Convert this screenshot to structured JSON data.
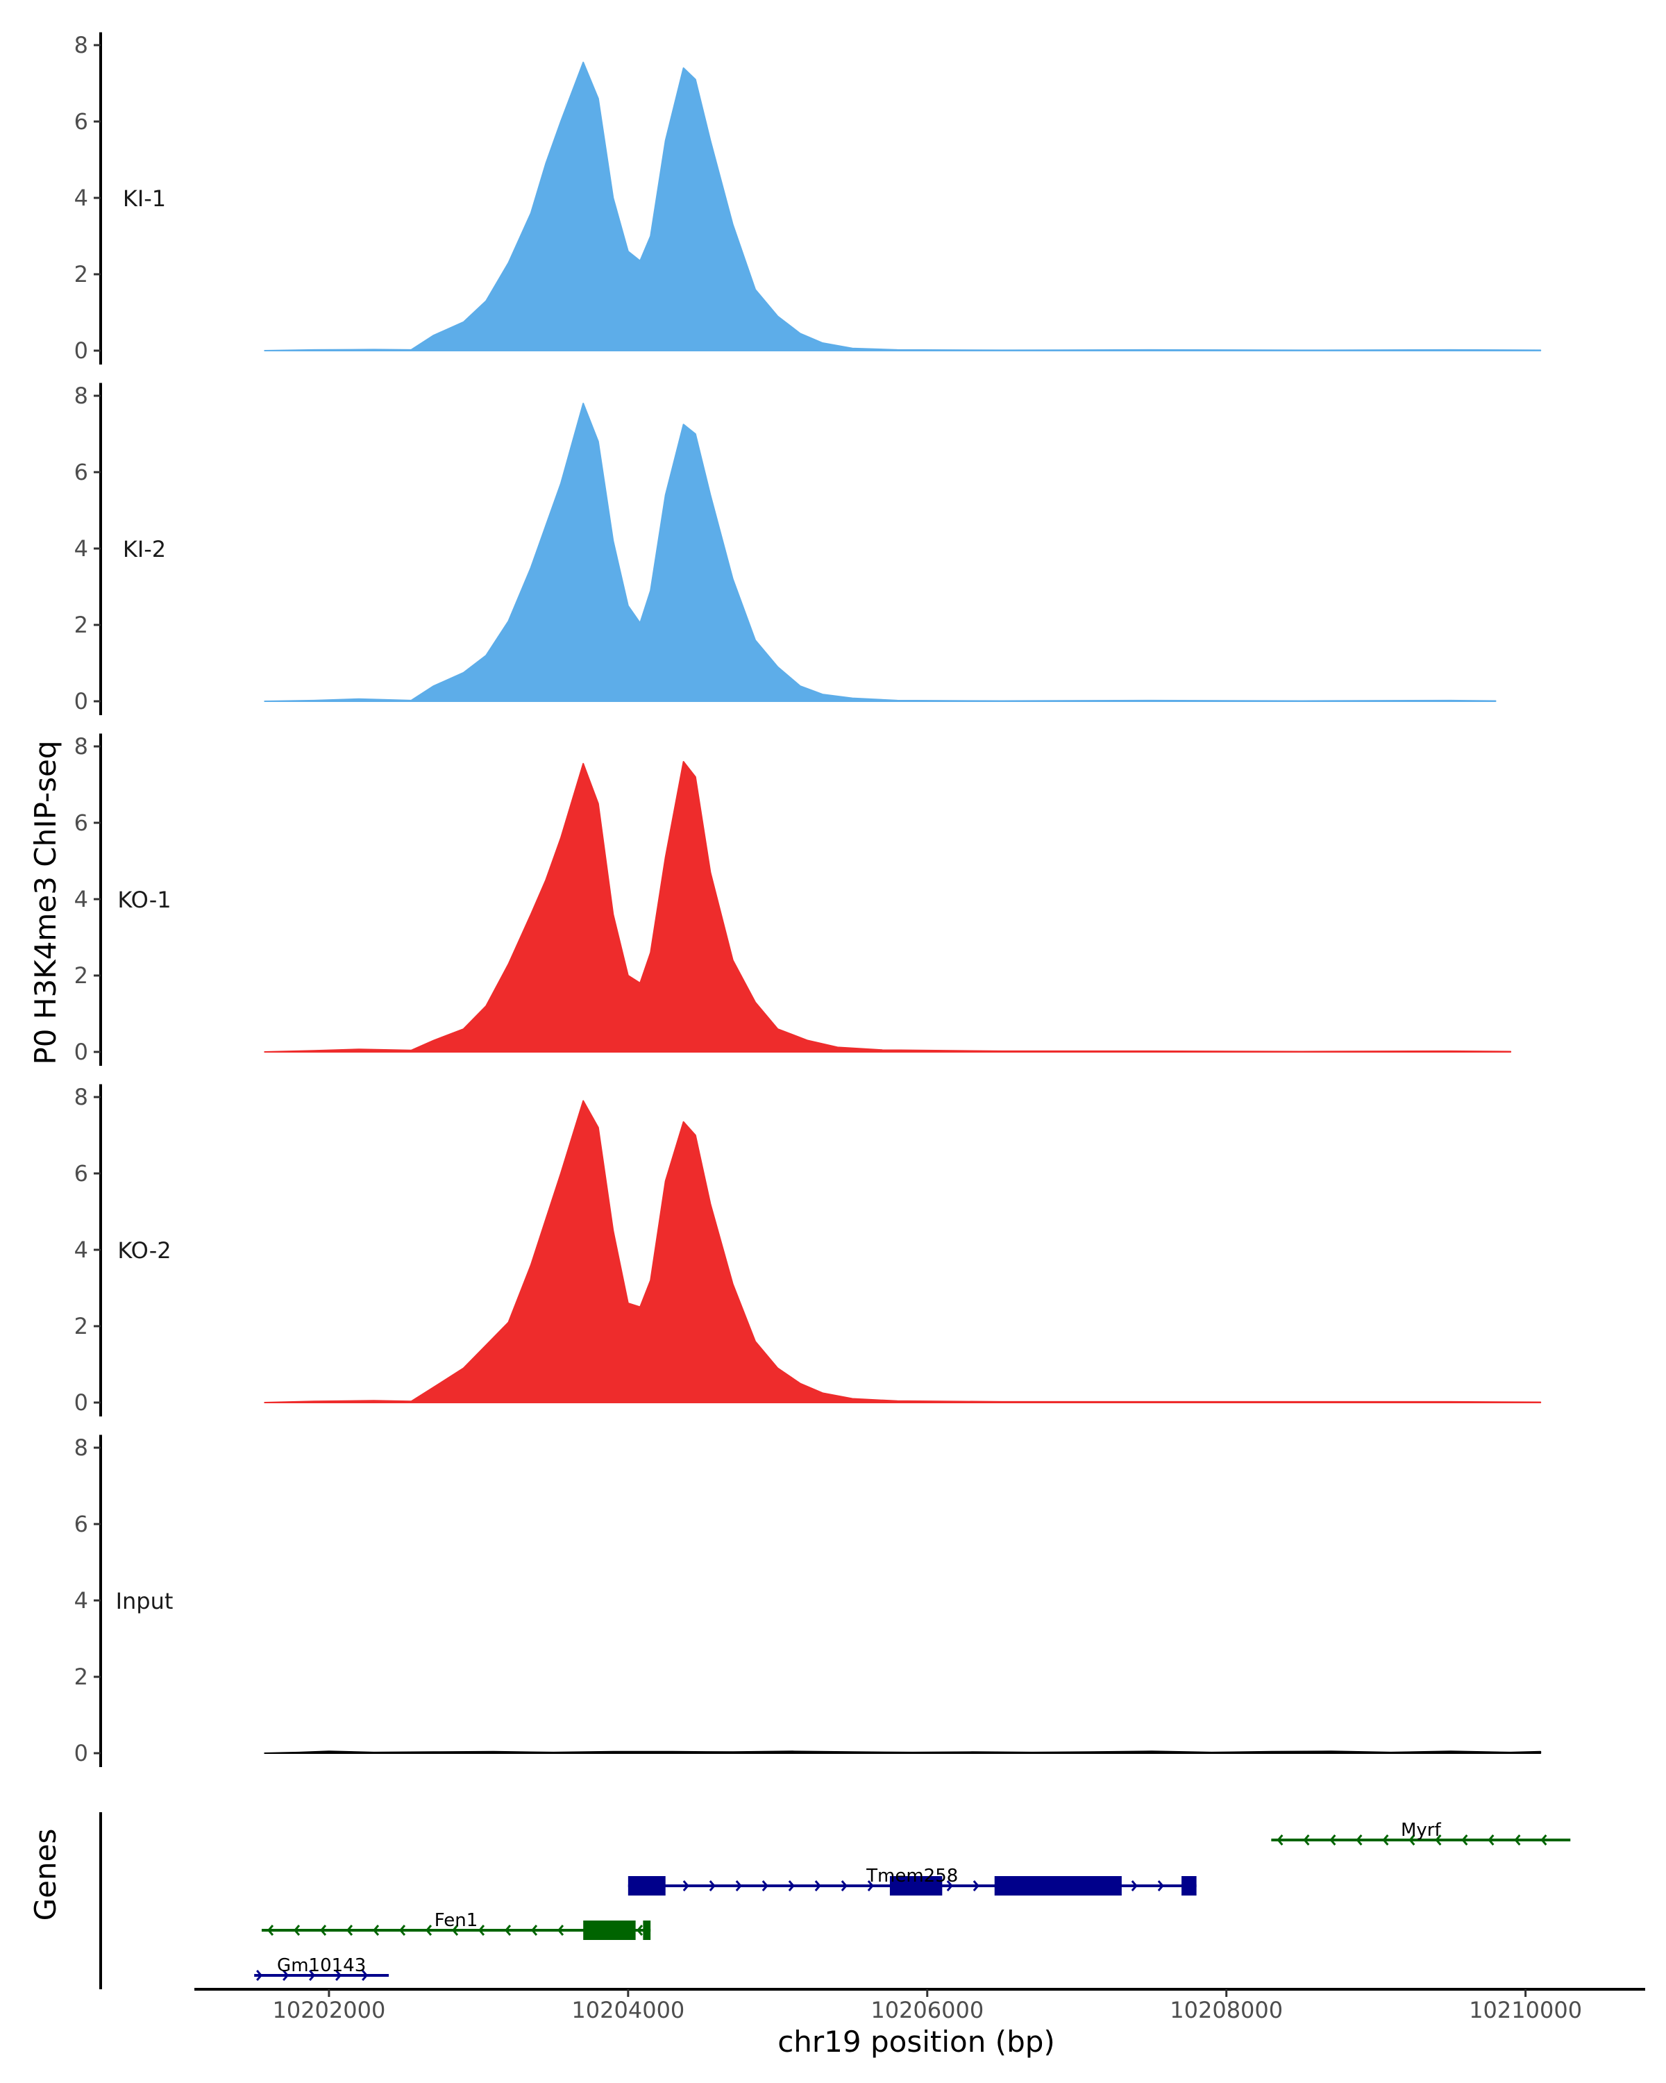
{
  "chart_data": {
    "type": "area",
    "ylabel": "P0 H3K4me3 ChIP-seq",
    "xlabel": "chr19 position (bp)",
    "genes_label": "Genes",
    "xlim": [
      10201100,
      10210800
    ],
    "ylim": [
      0,
      8.3
    ],
    "x_ticks": [
      10202000,
      10204000,
      10206000,
      10208000,
      10210000
    ],
    "x_tick_labels": [
      "10202000",
      "10204000",
      "10206000",
      "10208000",
      "10210000"
    ],
    "y_ticks": [
      0,
      2,
      4,
      6,
      8
    ],
    "y_tick_labels": [
      "0",
      "2",
      "4",
      "6",
      "8"
    ],
    "tracks": [
      {
        "name": "KI-1",
        "color": "#5dade9",
        "points": [
          [
            10201570,
            0
          ],
          [
            10201900,
            0.02
          ],
          [
            10202300,
            0.03
          ],
          [
            10202550,
            0.02
          ],
          [
            10202700,
            0.4
          ],
          [
            10202900,
            0.75
          ],
          [
            10203050,
            1.3
          ],
          [
            10203200,
            2.3
          ],
          [
            10203350,
            3.6
          ],
          [
            10203450,
            4.9
          ],
          [
            10203550,
            6.0
          ],
          [
            10203700,
            7.55
          ],
          [
            10203800,
            6.6
          ],
          [
            10203900,
            4.0
          ],
          [
            10204000,
            2.6
          ],
          [
            10204080,
            2.35
          ],
          [
            10204150,
            3.0
          ],
          [
            10204250,
            5.5
          ],
          [
            10204370,
            7.4
          ],
          [
            10204450,
            7.1
          ],
          [
            10204550,
            5.5
          ],
          [
            10204700,
            3.3
          ],
          [
            10204850,
            1.6
          ],
          [
            10205000,
            0.9
          ],
          [
            10205150,
            0.45
          ],
          [
            10205300,
            0.2
          ],
          [
            10205500,
            0.06
          ],
          [
            10205800,
            0.02
          ],
          [
            10206500,
            0.01
          ],
          [
            10207500,
            0.02
          ],
          [
            10208500,
            0.01
          ],
          [
            10209500,
            0.02
          ],
          [
            10210100,
            0.01
          ]
        ]
      },
      {
        "name": "KI-2",
        "color": "#5dade9",
        "points": [
          [
            10201570,
            0
          ],
          [
            10201900,
            0.02
          ],
          [
            10202200,
            0.06
          ],
          [
            10202550,
            0.02
          ],
          [
            10202700,
            0.4
          ],
          [
            10202900,
            0.75
          ],
          [
            10203050,
            1.2
          ],
          [
            10203200,
            2.1
          ],
          [
            10203350,
            3.5
          ],
          [
            10203450,
            4.6
          ],
          [
            10203550,
            5.7
          ],
          [
            10203700,
            7.8
          ],
          [
            10203800,
            6.8
          ],
          [
            10203900,
            4.2
          ],
          [
            10204000,
            2.5
          ],
          [
            10204080,
            2.05
          ],
          [
            10204150,
            2.9
          ],
          [
            10204250,
            5.4
          ],
          [
            10204370,
            7.25
          ],
          [
            10204450,
            7.0
          ],
          [
            10204550,
            5.4
          ],
          [
            10204700,
            3.2
          ],
          [
            10204850,
            1.6
          ],
          [
            10205000,
            0.9
          ],
          [
            10205150,
            0.4
          ],
          [
            10205300,
            0.18
          ],
          [
            10205500,
            0.08
          ],
          [
            10205800,
            0.02
          ],
          [
            10206500,
            0.01
          ],
          [
            10207500,
            0.02
          ],
          [
            10208500,
            0.01
          ],
          [
            10209500,
            0.02
          ],
          [
            10209800,
            0.01
          ]
        ]
      },
      {
        "name": "KO-1",
        "color": "#ee2c2c",
        "points": [
          [
            10201570,
            0
          ],
          [
            10201900,
            0.03
          ],
          [
            10202200,
            0.07
          ],
          [
            10202550,
            0.04
          ],
          [
            10202700,
            0.3
          ],
          [
            10202900,
            0.6
          ],
          [
            10203050,
            1.2
          ],
          [
            10203200,
            2.3
          ],
          [
            10203350,
            3.6
          ],
          [
            10203450,
            4.5
          ],
          [
            10203550,
            5.6
          ],
          [
            10203700,
            7.55
          ],
          [
            10203800,
            6.5
          ],
          [
            10203900,
            3.6
          ],
          [
            10204000,
            2.0
          ],
          [
            10204080,
            1.8
          ],
          [
            10204150,
            2.6
          ],
          [
            10204250,
            5.1
          ],
          [
            10204370,
            7.6
          ],
          [
            10204450,
            7.2
          ],
          [
            10204550,
            4.7
          ],
          [
            10204700,
            2.4
          ],
          [
            10204850,
            1.3
          ],
          [
            10205000,
            0.6
          ],
          [
            10205200,
            0.3
          ],
          [
            10205400,
            0.12
          ],
          [
            10205700,
            0.05
          ],
          [
            10206500,
            0.02
          ],
          [
            10207500,
            0.02
          ],
          [
            10208500,
            0.01
          ],
          [
            10209500,
            0.02
          ],
          [
            10209900,
            0.01
          ]
        ]
      },
      {
        "name": "KO-2",
        "color": "#ee2c2c",
        "points": [
          [
            10201570,
            0
          ],
          [
            10201900,
            0.03
          ],
          [
            10202300,
            0.05
          ],
          [
            10202550,
            0.03
          ],
          [
            10202700,
            0.4
          ],
          [
            10202900,
            0.9
          ],
          [
            10203050,
            1.5
          ],
          [
            10203200,
            2.1
          ],
          [
            10203350,
            3.6
          ],
          [
            10203450,
            4.8
          ],
          [
            10203550,
            6.0
          ],
          [
            10203700,
            7.9
          ],
          [
            10203800,
            7.2
          ],
          [
            10203900,
            4.5
          ],
          [
            10204000,
            2.6
          ],
          [
            10204080,
            2.5
          ],
          [
            10204150,
            3.2
          ],
          [
            10204250,
            5.8
          ],
          [
            10204370,
            7.35
          ],
          [
            10204450,
            7.0
          ],
          [
            10204550,
            5.2
          ],
          [
            10204700,
            3.1
          ],
          [
            10204850,
            1.6
          ],
          [
            10205000,
            0.9
          ],
          [
            10205150,
            0.5
          ],
          [
            10205300,
            0.25
          ],
          [
            10205500,
            0.1
          ],
          [
            10205800,
            0.04
          ],
          [
            10206500,
            0.02
          ],
          [
            10207500,
            0.02
          ],
          [
            10208500,
            0.02
          ],
          [
            10209500,
            0.02
          ],
          [
            10210100,
            0.01
          ]
        ]
      },
      {
        "name": "Input",
        "color": "#000000",
        "points": [
          [
            10201570,
            0
          ],
          [
            10201800,
            0.02
          ],
          [
            10202000,
            0.05
          ],
          [
            10202300,
            0.02
          ],
          [
            10202700,
            0.03
          ],
          [
            10203100,
            0.04
          ],
          [
            10203500,
            0.02
          ],
          [
            10203900,
            0.04
          ],
          [
            10204300,
            0.04
          ],
          [
            10204700,
            0.03
          ],
          [
            10205100,
            0.05
          ],
          [
            10205500,
            0.03
          ],
          [
            10205900,
            0.02
          ],
          [
            10206300,
            0.03
          ],
          [
            10206700,
            0.02
          ],
          [
            10207100,
            0.03
          ],
          [
            10207500,
            0.05
          ],
          [
            10207900,
            0.02
          ],
          [
            10208300,
            0.04
          ],
          [
            10208700,
            0.05
          ],
          [
            10209100,
            0.02
          ],
          [
            10209500,
            0.05
          ],
          [
            10209900,
            0.02
          ],
          [
            10210100,
            0.04
          ]
        ]
      }
    ],
    "genes": [
      {
        "name": "Myrf",
        "strand": "-",
        "color": "#006400",
        "start": 10208300,
        "end": 10210300,
        "row": 0,
        "exons": []
      },
      {
        "name": "Tmem258",
        "strand": "+",
        "color": "#00008b",
        "start": 10204000,
        "end": 10207800,
        "row": 1,
        "exons": [
          [
            10204000,
            10204250
          ],
          [
            10205750,
            10206100
          ],
          [
            10206450,
            10207300
          ],
          [
            10207700,
            10207800
          ]
        ]
      },
      {
        "name": "Fen1",
        "strand": "-",
        "color": "#006400",
        "start": 10201550,
        "end": 10204150,
        "row": 2,
        "exons": [
          [
            10203700,
            10204050
          ],
          [
            10204100,
            10204150
          ]
        ]
      },
      {
        "name": "Gm10143",
        "strand": "+",
        "color": "#00008b",
        "start": 10201500,
        "end": 10202400,
        "row": 3,
        "exons": []
      }
    ]
  }
}
